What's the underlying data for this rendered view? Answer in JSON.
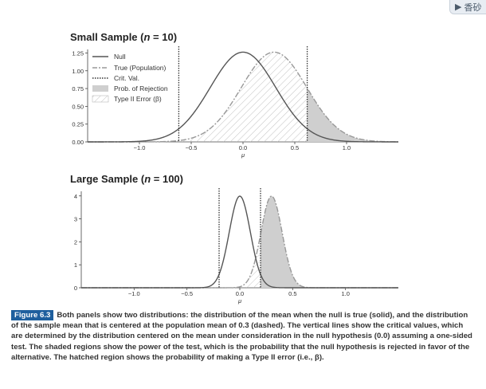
{
  "toolbar": {
    "button_label": "香砂",
    "icon": "play-triangle-icon"
  },
  "panels": {
    "small": {
      "title_prefix": "Small Sample (",
      "title_var": "n",
      "title_suffix": " = 10)"
    },
    "large": {
      "title_prefix": "Large Sample (",
      "title_var": "n",
      "title_suffix": " = 100)"
    }
  },
  "legend": {
    "null": "Null",
    "true_pop": "True (Population)",
    "crit": "Crit. Val.",
    "rejection": "Prob. of Rejection",
    "type2": "Type II Error (β)"
  },
  "caption": {
    "label": "Figure 6.3",
    "text": "Both panels show two distributions: the distribution of the mean when the null is true (solid), and the distribution of the sample mean that is centered at the population mean of 0.3 (dashed). The vertical lines show the critical values, which are determined by the distribution centered on the mean under consideration in the null hypothesis (0.0) assuming a one-sided test. The shaded regions show the power of the test, which is the probability that the null hypothesis is rejected in favor of the alternative. The hatched region shows the probability of making a Type II error (i.e., β)."
  },
  "colors": {
    "null_line": "#555555",
    "true_line": "#999999",
    "shade": "#cfcfcf",
    "caption_label_bg": "#1f5f9e"
  },
  "chart_data": [
    {
      "type": "line",
      "title": "Small Sample (n = 10)",
      "xlabel": "μ",
      "x_ticks": [
        "−1.0",
        "−0.5",
        "0.0",
        "0.5",
        "1.0"
      ],
      "y_ticks": [
        "0.00",
        "0.25",
        "0.50",
        "0.75",
        "1.00",
        "1.25"
      ],
      "xlim": [
        -1.5,
        1.5
      ],
      "ylim": [
        0,
        1.3
      ],
      "series": [
        {
          "name": "Null",
          "mean": 0.0,
          "sd": 0.3162
        },
        {
          "name": "True (Population)",
          "mean": 0.3,
          "sd": 0.3162
        }
      ],
      "critical_values": [
        -0.62,
        0.62
      ],
      "shaded": "Prob. of Rejection",
      "hatched": "Type II Error (β)",
      "legend": "top-left"
    },
    {
      "type": "line",
      "title": "Large Sample (n = 100)",
      "xlabel": "μ",
      "x_ticks": [
        "−1.0",
        "−0.5",
        "0.0",
        "0.5",
        "1.0"
      ],
      "y_ticks": [
        "0",
        "1",
        "2",
        "3",
        "4"
      ],
      "xlim": [
        -1.5,
        1.5
      ],
      "ylim": [
        0,
        4.2
      ],
      "series": [
        {
          "name": "Null",
          "mean": 0.0,
          "sd": 0.1
        },
        {
          "name": "True (Population)",
          "mean": 0.3,
          "sd": 0.1
        }
      ],
      "critical_values": [
        -0.196,
        0.196
      ],
      "shaded": "Prob. of Rejection",
      "hatched": "Type II Error (β)"
    }
  ]
}
